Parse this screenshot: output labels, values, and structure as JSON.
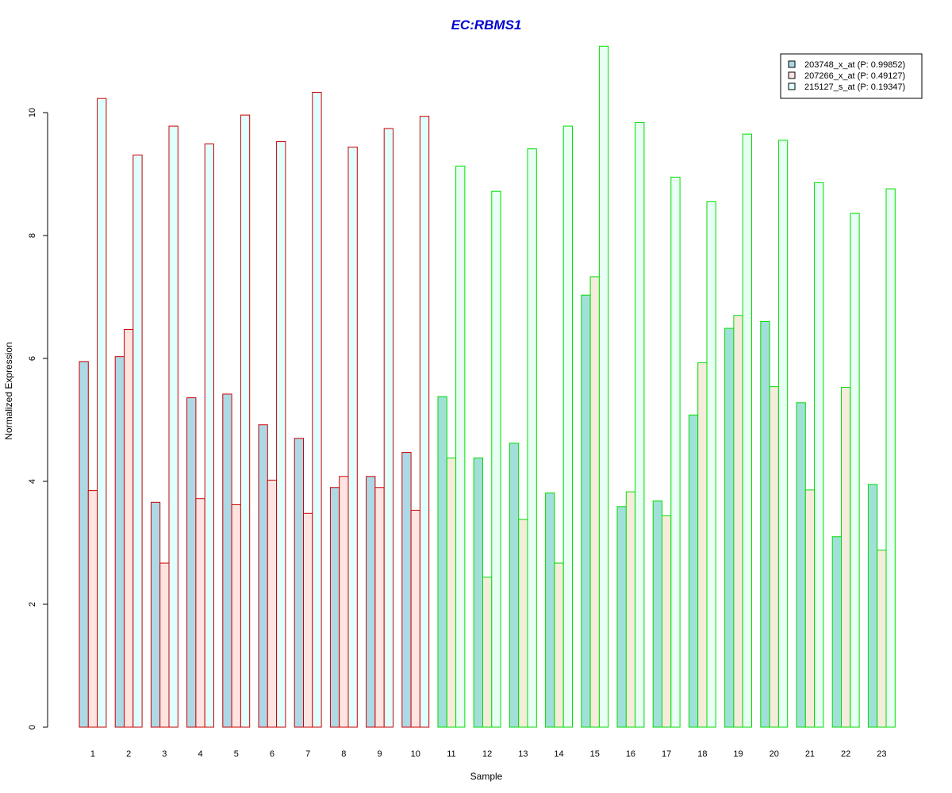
{
  "chart_data": {
    "type": "bar",
    "title": "EC:RBMS1",
    "xlabel": "Sample",
    "ylabel": "Normalized Expression",
    "ylim": [
      0,
      11
    ],
    "yticks": [
      0,
      2,
      4,
      6,
      8,
      10
    ],
    "grid": false,
    "legend_position": "top-right",
    "categories": [
      "1",
      "2",
      "3",
      "4",
      "5",
      "6",
      "7",
      "8",
      "9",
      "10",
      "11",
      "12",
      "13",
      "14",
      "15",
      "16",
      "17",
      "18",
      "19",
      "20",
      "21",
      "22",
      "23"
    ],
    "group_border_colors": {
      "red_group": "#cc0000",
      "green_group": "#00dd00",
      "red_group_samples": [
        "1",
        "2",
        "3",
        "4",
        "5",
        "6",
        "7",
        "8",
        "9",
        "10"
      ],
      "green_group_samples": [
        "11",
        "12",
        "13",
        "14",
        "15",
        "16",
        "17",
        "18",
        "19",
        "20",
        "21",
        "22",
        "23"
      ]
    },
    "series": [
      {
        "name": "203748_x_at (P: 0.99852)",
        "fill_red_group": "#add8e6",
        "fill_green_group": "#a0e0d8",
        "values": [
          5.95,
          6.03,
          3.66,
          5.36,
          5.42,
          4.92,
          4.7,
          3.9,
          4.08,
          4.47,
          5.38,
          4.38,
          4.62,
          3.81,
          7.03,
          3.59,
          3.68,
          5.08,
          6.49,
          6.6,
          5.28,
          3.1,
          3.95
        ]
      },
      {
        "name": "207266_x_at (P: 0.49127)",
        "fill_red_group": "#ffe4e1",
        "fill_green_group": "#f5ecdc",
        "values": [
          3.85,
          6.47,
          2.67,
          3.72,
          3.62,
          4.02,
          3.48,
          4.08,
          3.9,
          3.53,
          4.38,
          2.44,
          3.38,
          2.67,
          7.33,
          3.83,
          3.44,
          5.93,
          6.7,
          5.54,
          3.86,
          5.53,
          2.88
        ]
      },
      {
        "name": "215127_s_at (P: 0.19347)",
        "fill_red_group": "#e0ffff",
        "fill_green_group": "#e8fff4",
        "values": [
          10.23,
          9.31,
          9.78,
          9.49,
          9.96,
          9.53,
          10.33,
          9.44,
          9.74,
          9.94,
          9.13,
          8.72,
          9.41,
          9.78,
          11.08,
          9.84,
          8.95,
          8.55,
          9.65,
          9.55,
          8.86,
          8.36,
          8.76
        ]
      }
    ]
  }
}
